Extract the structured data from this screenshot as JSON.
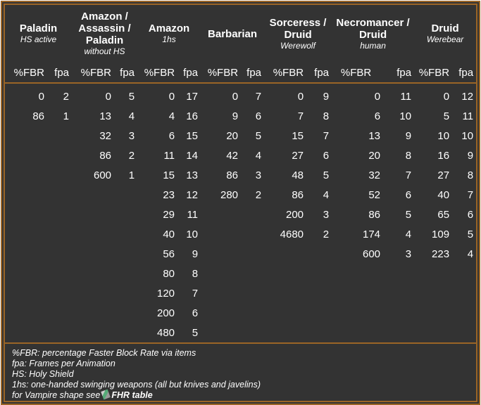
{
  "columns": [
    {
      "name": "Paladin",
      "sub": "HS active"
    },
    {
      "name": "Amazon / Assassin / Paladin",
      "sub": "without HS"
    },
    {
      "name": "Amazon",
      "sub": "1hs"
    },
    {
      "name": "Barbarian",
      "sub": ""
    },
    {
      "name": "Sorceress / Druid",
      "sub": "Werewolf"
    },
    {
      "name": "Necromancer / Druid",
      "sub": "human"
    },
    {
      "name": "Druid",
      "sub": "Werebear"
    }
  ],
  "sub_headers": {
    "fbr": "%FBR",
    "fpa": "fpa"
  },
  "rows": [
    [
      "0",
      "2",
      "0",
      "5",
      "0",
      "17",
      "0",
      "7",
      "0",
      "9",
      "0",
      "11",
      "0",
      "12"
    ],
    [
      "86",
      "1",
      "13",
      "4",
      "4",
      "16",
      "9",
      "6",
      "7",
      "8",
      "6",
      "10",
      "5",
      "11"
    ],
    [
      "",
      "",
      "32",
      "3",
      "6",
      "15",
      "20",
      "5",
      "15",
      "7",
      "13",
      "9",
      "10",
      "10"
    ],
    [
      "",
      "",
      "86",
      "2",
      "11",
      "14",
      "42",
      "4",
      "27",
      "6",
      "20",
      "8",
      "16",
      "9"
    ],
    [
      "",
      "",
      "600",
      "1",
      "15",
      "13",
      "86",
      "3",
      "48",
      "5",
      "32",
      "7",
      "27",
      "8"
    ],
    [
      "",
      "",
      "",
      "",
      "23",
      "12",
      "280",
      "2",
      "86",
      "4",
      "52",
      "6",
      "40",
      "7"
    ],
    [
      "",
      "",
      "",
      "",
      "29",
      "11",
      "",
      "",
      "200",
      "3",
      "86",
      "5",
      "65",
      "6"
    ],
    [
      "",
      "",
      "",
      "",
      "40",
      "10",
      "",
      "",
      "4680",
      "2",
      "174",
      "4",
      "109",
      "5"
    ],
    [
      "",
      "",
      "",
      "",
      "56",
      "9",
      "",
      "",
      "",
      "",
      "600",
      "3",
      "223",
      "4"
    ],
    [
      "",
      "",
      "",
      "",
      "80",
      "8",
      "",
      "",
      "",
      "",
      "",
      "",
      "",
      ""
    ],
    [
      "",
      "",
      "",
      "",
      "120",
      "7",
      "",
      "",
      "",
      "",
      "",
      "",
      "",
      ""
    ],
    [
      "",
      "",
      "",
      "",
      "200",
      "6",
      "",
      "",
      "",
      "",
      "",
      "",
      "",
      ""
    ],
    [
      "",
      "",
      "",
      "",
      "480",
      "5",
      "",
      "",
      "",
      "",
      "",
      "",
      "",
      ""
    ]
  ],
  "footnotes": [
    "%FBR: percentage Faster Block Rate via items",
    "fpa: Frames per Animation",
    "HS: Holy Shield",
    "1hs: one-handed swinging weapons (all but knives and javelins)"
  ],
  "vampire_note": {
    "text": "for Vampire shape see",
    "link": "FHR table",
    "icon": "potion-icon"
  },
  "colors": {
    "background": "#333333",
    "border": "#9b6526",
    "text": "#ffffff"
  }
}
